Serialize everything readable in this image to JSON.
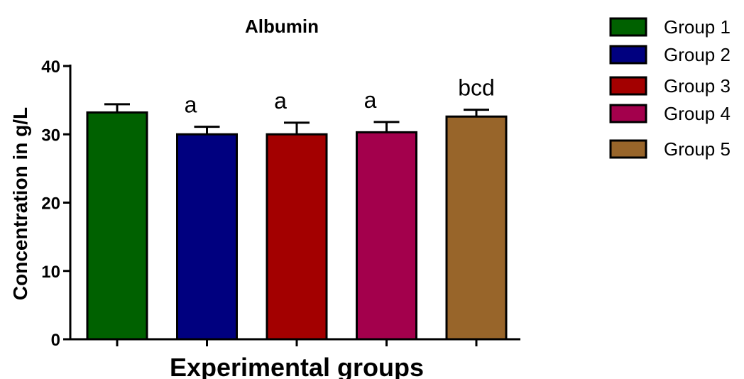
{
  "chart_data": {
    "type": "bar",
    "title": "Albumin",
    "xlabel": "Experimental groups",
    "ylabel": "Concentration in g/L",
    "ylim": [
      0,
      40
    ],
    "yticks": [
      0,
      10,
      20,
      30,
      40
    ],
    "grid": false,
    "legend_position": "right",
    "categories": [
      "Group 1",
      "Group 2",
      "Group 3",
      "Group 4",
      "Group 5"
    ],
    "values": [
      33.2,
      30.0,
      30.0,
      30.3,
      32.6
    ],
    "errors": [
      1.2,
      1.1,
      1.7,
      1.5,
      1.0
    ],
    "annotations": [
      "",
      "a",
      "a",
      "a",
      "bcd"
    ],
    "colors": [
      "#006100",
      "#00007f",
      "#a30000",
      "#a3004c",
      "#98652a"
    ]
  }
}
